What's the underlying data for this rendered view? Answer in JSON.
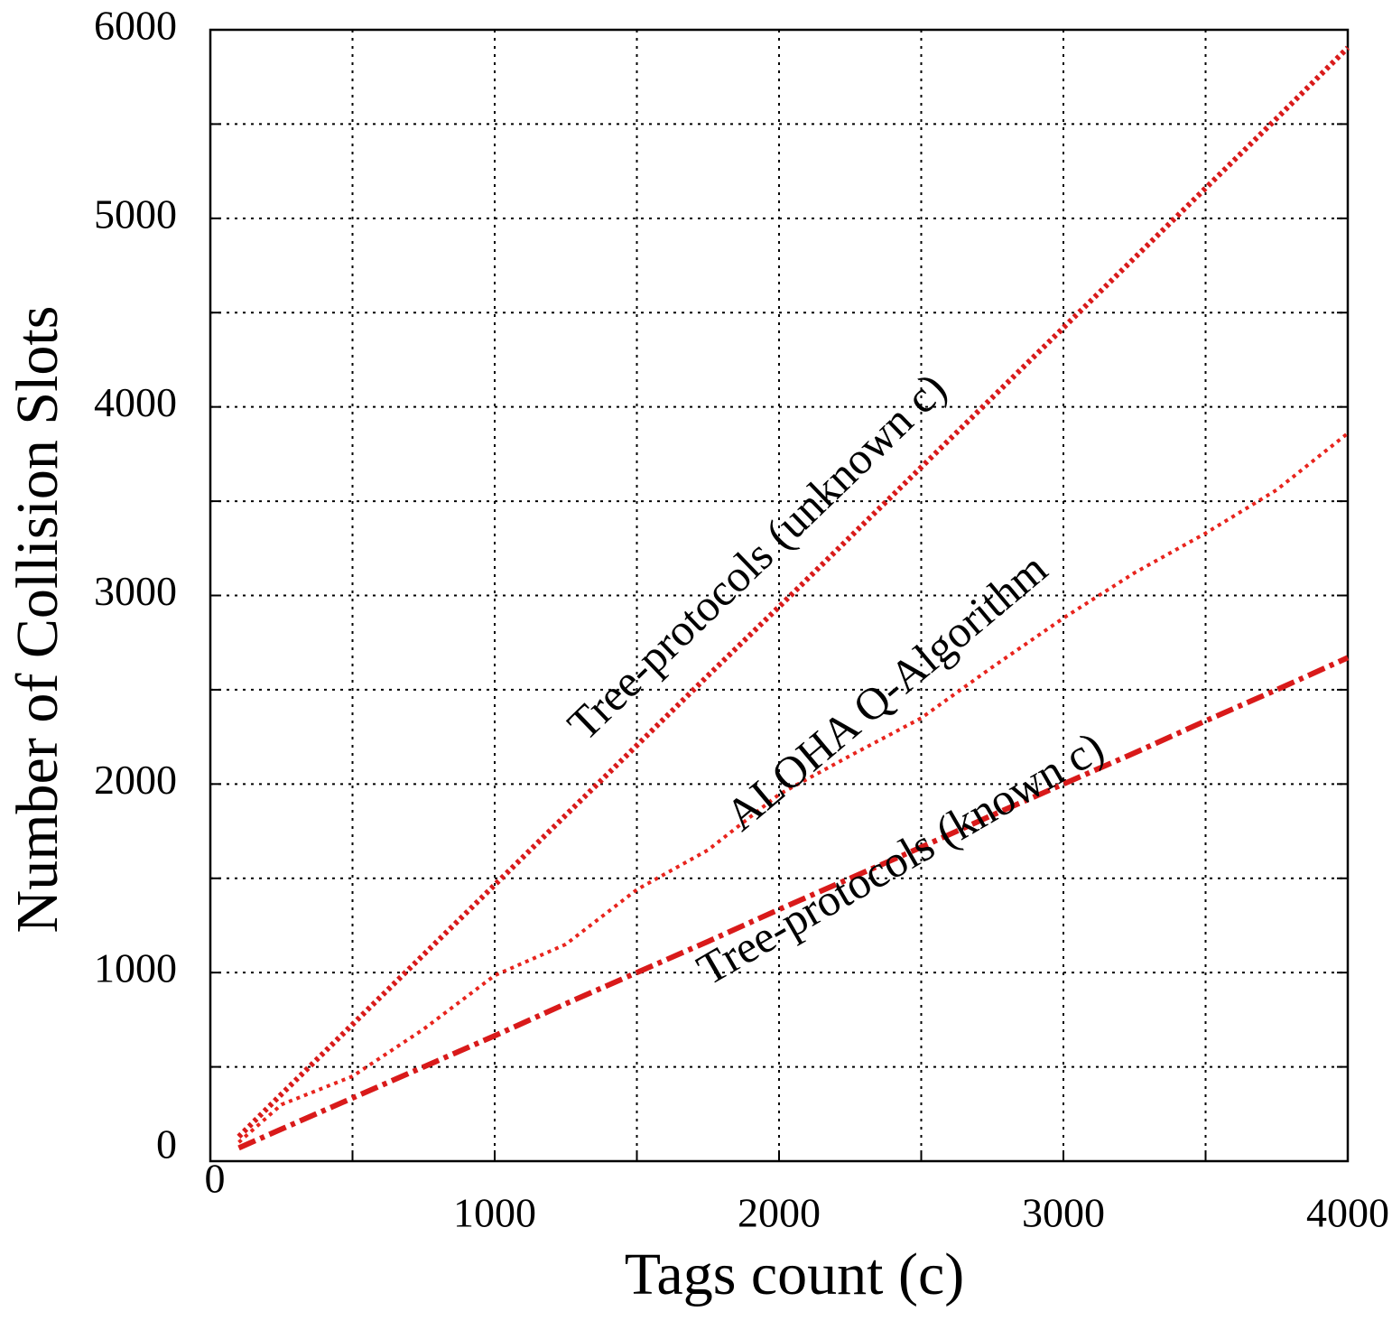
{
  "chart_data": {
    "type": "line",
    "xlabel": "Tags count (c)",
    "ylabel": "Number of Collision Slots",
    "x": [
      100,
      250,
      500,
      750,
      1000,
      1250,
      1500,
      1750,
      2000,
      2250,
      2500,
      2750,
      3000,
      3250,
      3500,
      3750,
      4000
    ],
    "series": [
      {
        "name": "Tree-protocols (unknown c)",
        "color": "#d91a1a",
        "style": "dotted",
        "values": [
          130,
          355,
          725,
          1095,
          1465,
          1835,
          2205,
          2575,
          2940,
          3310,
          3680,
          4050,
          4420,
          4790,
          5160,
          5530,
          5905
        ]
      },
      {
        "name": "ALOHA Q-Algorithm",
        "color": "#e8241d",
        "style": "fine-dotted",
        "values": [
          100,
          300,
          450,
          700,
          985,
          1150,
          1440,
          1650,
          1945,
          2150,
          2350,
          2620,
          2880,
          3120,
          3330,
          3560,
          3860
        ]
      },
      {
        "name": "Tree-protocols (known c)",
        "color": "#d91a1a",
        "style": "dash-dot",
        "values": [
          70,
          170,
          335,
          500,
          665,
          835,
          1000,
          1165,
          1335,
          1500,
          1665,
          1835,
          2000,
          2165,
          2335,
          2500,
          2670
        ]
      }
    ],
    "xlim": [
      0,
      4000
    ],
    "ylim": [
      0,
      6000
    ],
    "xticks": [
      0,
      1000,
      2000,
      3000,
      4000
    ],
    "yticks": [
      0,
      1000,
      2000,
      3000,
      4000,
      5000,
      6000
    ],
    "x_minor_ticks": [
      500,
      1500,
      2500,
      3500
    ],
    "y_minor_ticks": [
      500,
      1500,
      2500,
      3500,
      4500,
      5500
    ],
    "grid": true
  }
}
